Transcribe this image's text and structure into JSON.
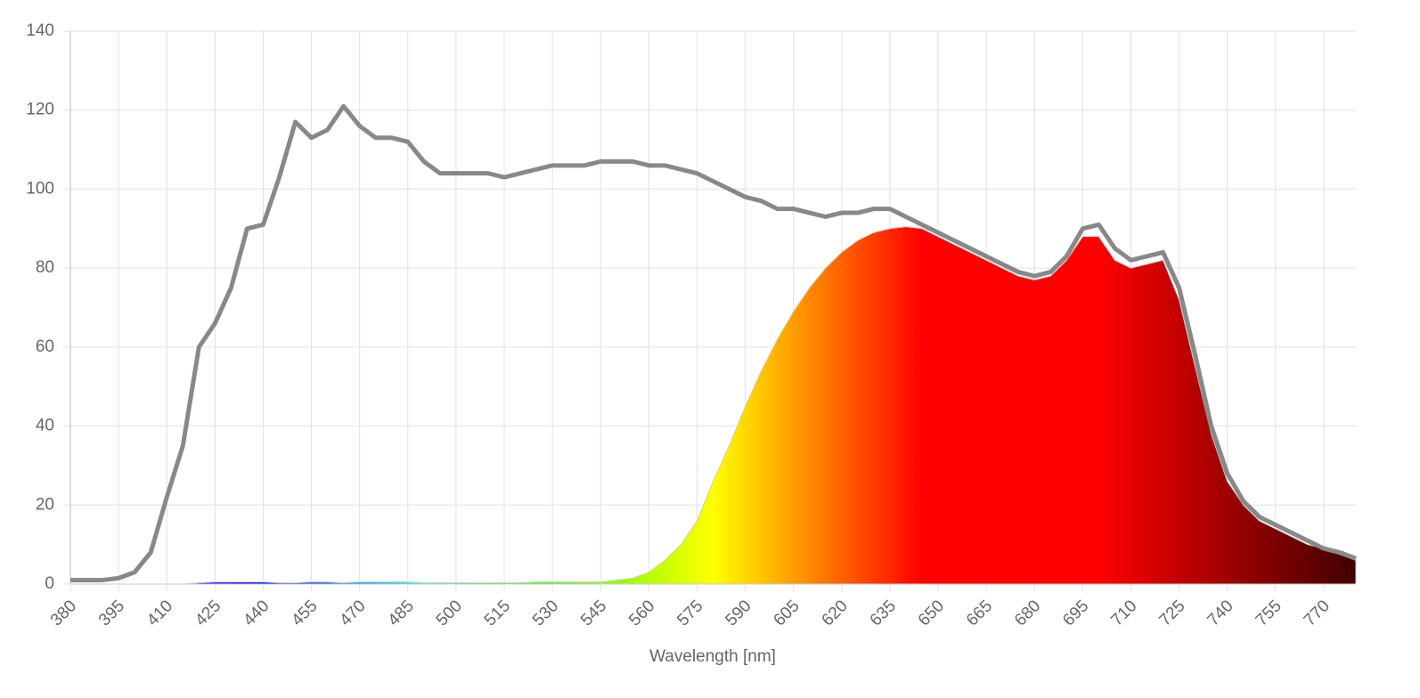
{
  "chart_data": {
    "type": "area",
    "x_label": "Wavelength [nm]",
    "x": [
      380,
      385,
      390,
      395,
      400,
      405,
      410,
      415,
      420,
      425,
      430,
      435,
      440,
      445,
      450,
      455,
      460,
      465,
      470,
      475,
      480,
      485,
      490,
      495,
      500,
      505,
      510,
      515,
      520,
      525,
      530,
      535,
      540,
      545,
      550,
      555,
      560,
      565,
      570,
      575,
      580,
      585,
      590,
      595,
      600,
      605,
      610,
      615,
      620,
      625,
      630,
      635,
      640,
      645,
      650,
      655,
      660,
      665,
      670,
      675,
      680,
      685,
      690,
      695,
      700,
      705,
      710,
      715,
      720,
      725,
      730,
      735,
      740,
      745,
      750,
      755,
      760,
      765,
      770,
      775,
      780
    ],
    "series": [
      {
        "type": "line",
        "color": "#888888",
        "values": [
          1,
          1,
          1,
          1.5,
          3,
          8,
          22,
          35,
          60,
          66,
          75,
          90,
          91,
          103,
          117,
          113,
          115,
          121,
          116,
          113,
          113,
          112,
          107,
          104,
          104,
          104,
          104,
          103,
          104,
          105,
          106,
          106,
          106,
          107,
          107,
          107,
          106,
          106,
          105,
          104,
          102,
          100,
          98,
          97,
          95,
          95,
          94,
          93,
          94,
          94,
          95,
          95,
          93,
          91,
          89,
          87,
          85,
          83,
          81,
          79,
          78,
          79,
          83,
          90,
          91,
          85,
          82,
          83,
          84,
          75,
          58,
          40,
          28,
          21,
          17,
          15,
          13,
          11,
          9,
          8,
          6.5
        ]
      },
      {
        "type": "area",
        "color": "spectrum",
        "values": [
          0,
          0,
          0,
          0,
          0,
          0,
          0,
          0,
          0.3,
          0.5,
          0.5,
          0.5,
          0.5,
          0.3,
          0.3,
          0.5,
          0.5,
          0.3,
          0.5,
          0.5,
          0.5,
          0.5,
          0.3,
          0.3,
          0.3,
          0.3,
          0.3,
          0.3,
          0.3,
          0.5,
          0.5,
          0.5,
          0.5,
          0.5,
          1,
          1.5,
          3,
          6,
          10,
          16,
          26,
          35,
          45,
          54,
          62,
          69,
          75,
          80,
          84,
          87,
          89,
          90,
          90.5,
          90,
          88,
          86,
          84,
          82,
          80,
          78,
          77,
          78,
          82,
          88,
          88,
          82,
          80,
          81,
          82,
          72,
          55,
          38,
          26,
          20,
          16,
          14,
          12,
          10,
          9,
          7.5,
          6
        ]
      }
    ],
    "xlim": [
      380,
      780
    ],
    "xticks": [
      380,
      395,
      410,
      425,
      440,
      455,
      470,
      485,
      500,
      515,
      530,
      545,
      560,
      575,
      590,
      605,
      620,
      635,
      650,
      665,
      680,
      695,
      710,
      725,
      740,
      755,
      770
    ],
    "ylim": [
      0,
      140
    ],
    "yticks": [
      0,
      20,
      40,
      60,
      80,
      100,
      120,
      140
    ],
    "grid": true
  }
}
